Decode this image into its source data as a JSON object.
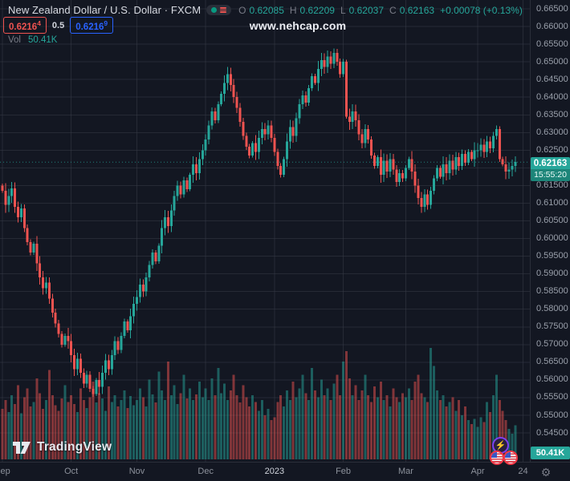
{
  "header": {
    "symbol_title": "New Zealand Dollar / U.S. Dollar · FXCM",
    "ohlc": {
      "o_label": "O",
      "o": "0.62085",
      "h_label": "H",
      "h": "0.62209",
      "l_label": "L",
      "l": "0.62037",
      "c_label": "C",
      "c": "0.62163",
      "change": "+0.00078 (+0.13%)"
    },
    "sell_price": {
      "main": "0.6216",
      "sup": "4"
    },
    "spread": "0.5",
    "buy_price": {
      "main": "0.6216",
      "sup": "9"
    },
    "vol_label": "Vol",
    "vol_value": "50.41K"
  },
  "watermark": "www.nehcap.com",
  "logo_text": "TradingView",
  "price_scale": {
    "badge_price": "0.62163",
    "badge_countdown": "15:55:20",
    "volume_badge": "50.41K"
  },
  "icons": {
    "status_pill": "market-status-open-and-depth",
    "lightning": "economic-event",
    "flags": "us-economic-calendar",
    "gear": "time-scale-settings"
  },
  "colors": {
    "background": "#131722",
    "up": "#26a69a",
    "down": "#ef5350",
    "sell": "#ef5350",
    "buy": "#2962ff",
    "grid": "rgba(54,58,69,0.55)",
    "axis_text": "#9aa0ab",
    "price_line": "rgba(38,166,154,0.75)"
  },
  "chart_data": {
    "type": "candlestick+volume-bar",
    "title": "New Zealand Dollar / U.S. Dollar (NZDUSD) · FXCM, daily",
    "x_range_note": "Sep 2022 through Apr 24 2023, values estimated from pixels",
    "price_axis": {
      "min": 0.55,
      "max": 0.665,
      "tick_step": 0.005
    },
    "current_price": 0.62163,
    "current_volume_k": 50.41,
    "first_open": 0.615,
    "candle_rule": "open = previous close; high/low = body extreme ± wick(base,var)",
    "wick": {
      "base": 0.0006,
      "var": 0.0018
    },
    "y_ticks": [
      "0.66500",
      "0.66000",
      "0.65500",
      "0.65000",
      "0.64500",
      "0.64000",
      "0.63500",
      "0.63000",
      "0.62500",
      "0.62000",
      "0.61500",
      "0.61000",
      "0.60500",
      "0.60000",
      "0.59500",
      "0.59000",
      "0.58500",
      "0.58000",
      "0.57500",
      "0.57000",
      "0.56500",
      "0.56000",
      "0.55500",
      "0.55000",
      "0.54500"
    ],
    "x_ticks": [
      {
        "label": "Sep",
        "i": 0
      },
      {
        "label": "Oct",
        "i": 22
      },
      {
        "label": "Nov",
        "i": 43
      },
      {
        "label": "Dec",
        "i": 65
      },
      {
        "label": "2023",
        "i": 87,
        "year": true
      },
      {
        "label": "Feb",
        "i": 109
      },
      {
        "label": "Mar",
        "i": 129
      },
      {
        "label": "Apr",
        "i": 152
      },
      {
        "label": "24",
        "i": 166.5
      }
    ],
    "closes": [
      0.6135,
      0.6095,
      0.612,
      0.6142,
      0.609,
      0.606,
      0.6085,
      0.603,
      0.599,
      0.596,
      0.5985,
      0.593,
      0.589,
      0.586,
      0.5875,
      0.583,
      0.579,
      0.576,
      0.573,
      0.57,
      0.5725,
      0.571,
      0.567,
      0.563,
      0.566,
      0.562,
      0.559,
      0.5615,
      0.5575,
      0.556,
      0.56,
      0.558,
      0.562,
      0.5655,
      0.563,
      0.567,
      0.571,
      0.5685,
      0.5725,
      0.5765,
      0.574,
      0.578,
      0.5815,
      0.5835,
      0.587,
      0.585,
      0.589,
      0.5925,
      0.596,
      0.5935,
      0.598,
      0.603,
      0.606,
      0.6035,
      0.608,
      0.612,
      0.615,
      0.6125,
      0.6165,
      0.614,
      0.618,
      0.621,
      0.6185,
      0.6225,
      0.625,
      0.628,
      0.632,
      0.636,
      0.6335,
      0.638,
      0.641,
      0.644,
      0.6465,
      0.6435,
      0.64,
      0.637,
      0.633,
      0.629,
      0.626,
      0.6235,
      0.627,
      0.6245,
      0.6285,
      0.631,
      0.6295,
      0.632,
      0.6285,
      0.6245,
      0.6205,
      0.618,
      0.6225,
      0.6275,
      0.6315,
      0.629,
      0.634,
      0.638,
      0.6405,
      0.6385,
      0.6425,
      0.646,
      0.644,
      0.648,
      0.6505,
      0.6485,
      0.6515,
      0.6495,
      0.6525,
      0.65,
      0.6465,
      0.65,
      0.6345,
      0.633,
      0.636,
      0.6335,
      0.6295,
      0.627,
      0.631,
      0.628,
      0.6235,
      0.6205,
      0.623,
      0.618,
      0.622,
      0.619,
      0.6225,
      0.6195,
      0.616,
      0.6185,
      0.617,
      0.62,
      0.6225,
      0.619,
      0.615,
      0.6115,
      0.609,
      0.6125,
      0.6095,
      0.6135,
      0.617,
      0.62,
      0.6175,
      0.621,
      0.6185,
      0.622,
      0.6195,
      0.623,
      0.6205,
      0.624,
      0.6215,
      0.6245,
      0.6225,
      0.625,
      0.625,
      0.6265,
      0.6245,
      0.6275,
      0.6255,
      0.629,
      0.631,
      0.6225,
      0.621,
      0.619,
      0.6195,
      0.6205,
      0.62163
    ],
    "volumes_k": [
      75,
      88,
      70,
      95,
      82,
      110,
      68,
      92,
      105,
      78,
      85,
      120,
      98,
      75,
      88,
      132,
      95,
      80,
      72,
      90,
      110,
      85,
      95,
      82,
      70,
      105,
      88,
      76,
      92,
      115,
      84,
      98,
      90,
      72,
      108,
      85,
      95,
      78,
      88,
      102,
      76,
      94,
      80,
      88,
      105,
      92,
      78,
      118,
      96,
      84,
      130,
      102,
      88,
      145,
      95,
      110,
      82,
      98,
      125,
      90,
      105,
      88,
      96,
      115,
      92,
      105,
      88,
      120,
      95,
      135,
      98,
      112,
      88,
      102,
      125,
      95,
      84,
      110,
      92,
      78,
      95,
      85,
      72,
      88,
      65,
      75,
      58,
      62,
      85,
      95,
      78,
      102,
      88,
      115,
      92,
      105,
      125,
      98,
      88,
      135,
      102,
      92,
      118,
      95,
      105,
      88,
      112,
      125,
      95,
      145,
      160,
      120,
      95,
      110,
      88,
      102,
      125,
      95,
      85,
      108,
      92,
      115,
      88,
      95,
      78,
      105,
      92,
      85,
      98,
      92,
      105,
      88,
      115,
      125,
      98,
      92,
      85,
      165,
      138,
      102,
      88,
      95,
      78,
      85,
      92,
      72,
      88,
      65,
      78,
      58,
      52,
      60,
      48,
      62,
      55,
      85,
      70,
      95,
      125,
      88,
      72,
      58,
      45,
      38,
      50.41
    ]
  }
}
